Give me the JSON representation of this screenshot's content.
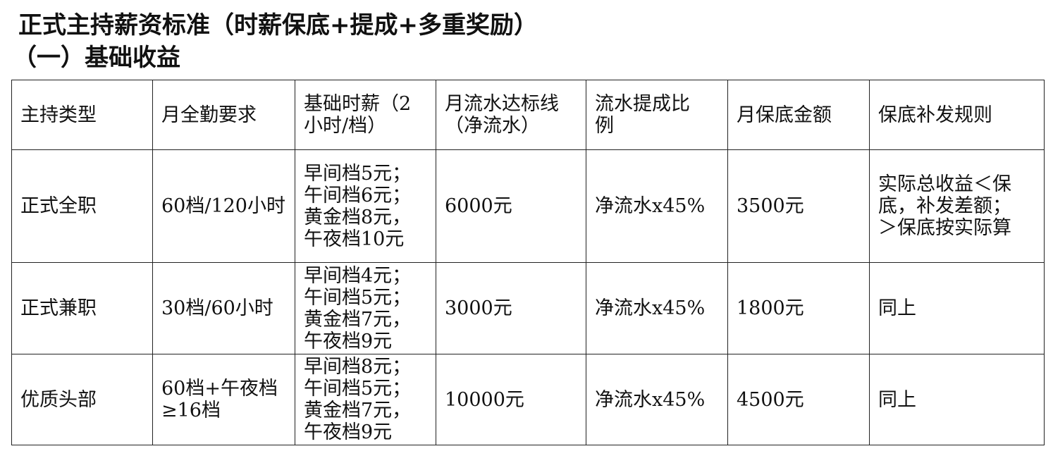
{
  "document": {
    "title": "正式主持薪资标准（时薪保底+提成+多重奖励）",
    "section": "（一）基础收益"
  },
  "table": {
    "headers": [
      "主持类型",
      "月全勤要求",
      "基础时薪（2\n小时/档）",
      "月流水达标线\n（净流水）",
      "流水提成比\n例",
      "月保底金额",
      "保底补发规则"
    ],
    "rows": [
      [
        "正式全职",
        "60档/120小时",
        "早间档5元；\n午间档6元；\n黄金档8元，\n午夜档10元",
        "6000元",
        "净流水x45%",
        "3500元",
        "实际总收益＜保\n底，补发差额；\n＞保底按实际算"
      ],
      [
        "正式兼职",
        "30档/60小时",
        "早间档4元；\n午间档5元；\n黄金档7元，\n午夜档9元",
        "3000元",
        "净流水x45%",
        "1800元",
        "同上"
      ],
      [
        "优质头部",
        "60档+午夜档\n≥16档",
        "早间档8元；\n午间档5元；\n黄金档7元，\n午夜档9元",
        "10000元",
        "净流水x45%",
        "4500元",
        "同上"
      ]
    ]
  }
}
